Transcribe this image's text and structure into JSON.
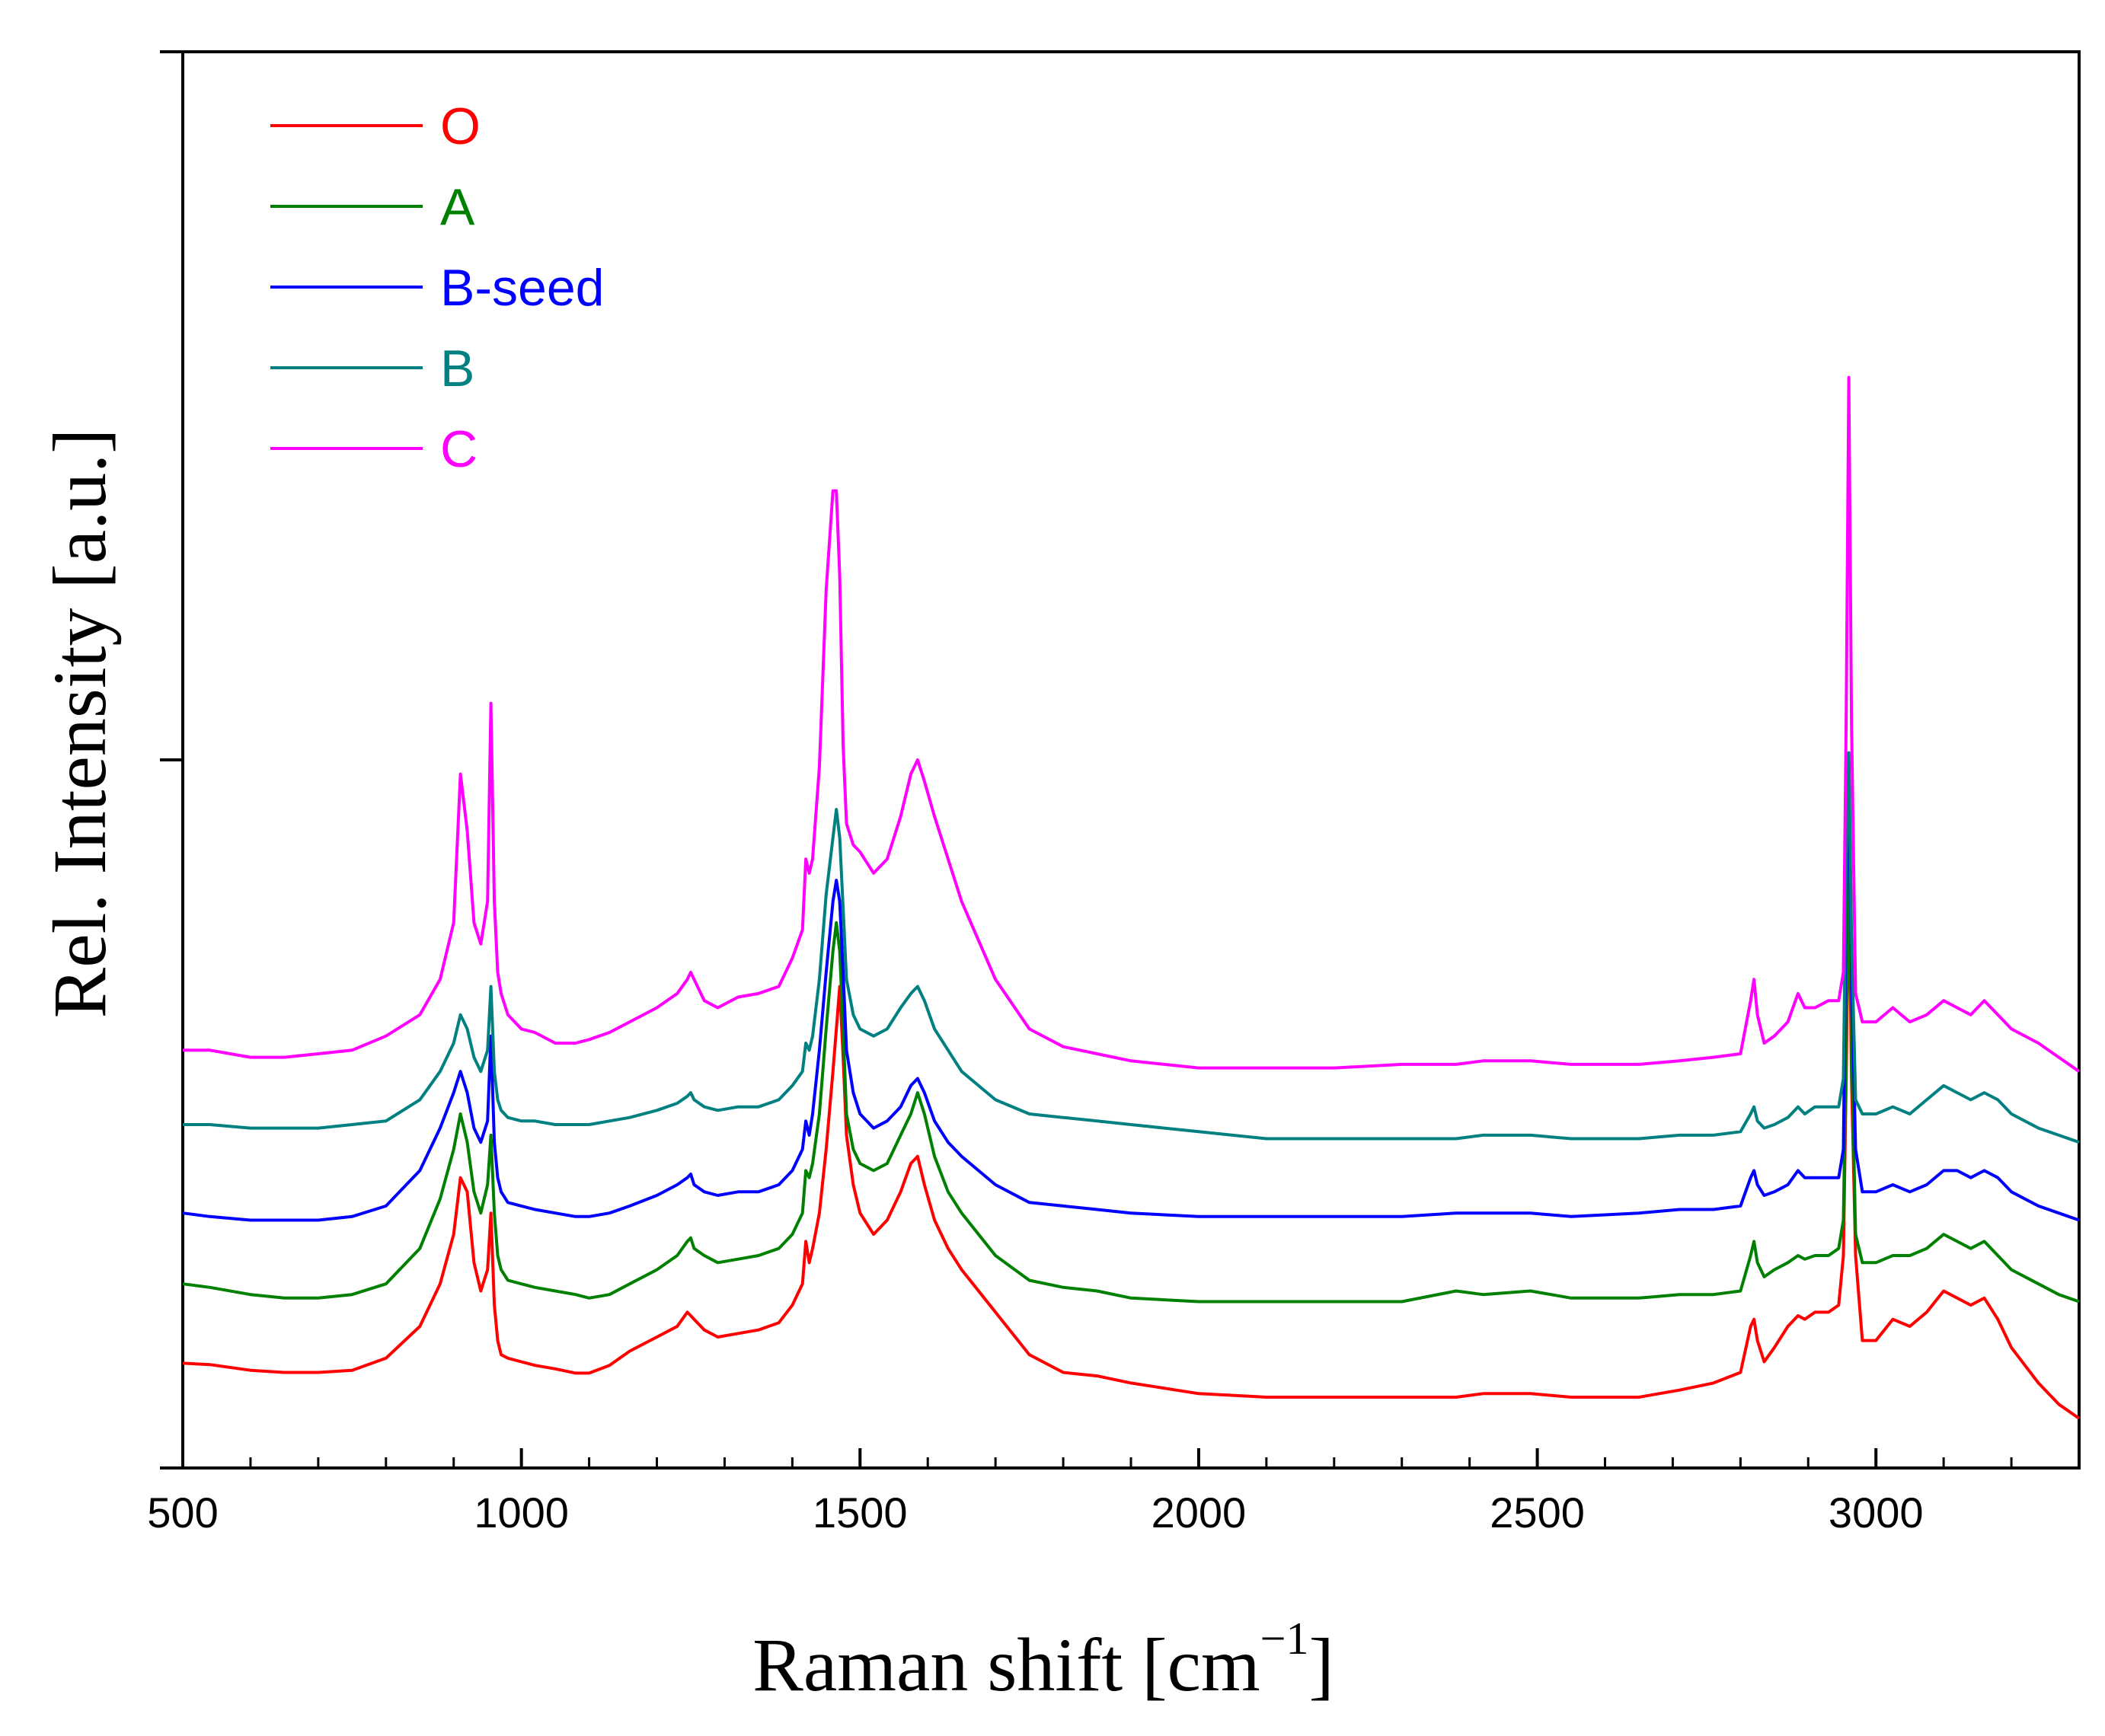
{
  "chart_data": {
    "type": "line",
    "title": "",
    "xlabel": "Raman shift [cm",
    "xlabel_sup": "−1",
    "xlabel_close": "]",
    "ylabel": "Rel. Intensity [a.u.]",
    "xlim": [
      500,
      3300
    ],
    "ylim": [
      0,
      2
    ],
    "x_ticks": [
      500,
      1000,
      1500,
      2000,
      2500,
      3000
    ],
    "x_tick_labels": [
      "500",
      "1000",
      "1500",
      "2000",
      "2500",
      "3000"
    ],
    "x_minor_step": 100,
    "y_ticks": [
      0,
      1,
      2
    ],
    "y_tick_labels": [
      "",
      "",
      ""
    ],
    "grid": false,
    "legend_position": "top-left",
    "x": [
      500,
      540,
      600,
      650,
      700,
      750,
      800,
      850,
      880,
      900,
      910,
      920,
      930,
      940,
      950,
      955,
      960,
      965,
      970,
      980,
      1000,
      1020,
      1050,
      1080,
      1100,
      1130,
      1160,
      1200,
      1230,
      1245,
      1250,
      1255,
      1270,
      1290,
      1320,
      1350,
      1380,
      1400,
      1415,
      1420,
      1425,
      1430,
      1440,
      1450,
      1460,
      1465,
      1470,
      1475,
      1480,
      1490,
      1500,
      1520,
      1540,
      1560,
      1575,
      1585,
      1595,
      1610,
      1630,
      1650,
      1700,
      1750,
      1800,
      1850,
      1900,
      2000,
      2100,
      2200,
      2300,
      2380,
      2420,
      2490,
      2550,
      2650,
      2710,
      2760,
      2800,
      2815,
      2820,
      2825,
      2835,
      2850,
      2870,
      2885,
      2895,
      2910,
      2930,
      2945,
      2952,
      2956,
      2960,
      2964,
      2970,
      2980,
      3000,
      3025,
      3050,
      3075,
      3100,
      3120,
      3140,
      3160,
      3180,
      3200,
      3240,
      3270,
      3300
    ],
    "series": [
      {
        "name": "O",
        "color": "#ff0000",
        "values": [
          0.148,
          0.146,
          0.138,
          0.135,
          0.135,
          0.138,
          0.155,
          0.2,
          0.26,
          0.33,
          0.41,
          0.39,
          0.29,
          0.25,
          0.28,
          0.36,
          0.23,
          0.18,
          0.16,
          0.155,
          0.15,
          0.145,
          0.14,
          0.134,
          0.134,
          0.145,
          0.165,
          0.185,
          0.2,
          0.22,
          0.215,
          0.21,
          0.195,
          0.185,
          0.19,
          0.195,
          0.205,
          0.23,
          0.26,
          0.32,
          0.29,
          0.31,
          0.36,
          0.45,
          0.56,
          0.62,
          0.68,
          0.58,
          0.47,
          0.4,
          0.36,
          0.33,
          0.35,
          0.39,
          0.43,
          0.44,
          0.4,
          0.35,
          0.31,
          0.28,
          0.22,
          0.16,
          0.135,
          0.13,
          0.12,
          0.105,
          0.1,
          0.1,
          0.1,
          0.1,
          0.105,
          0.105,
          0.1,
          0.1,
          0.11,
          0.12,
          0.135,
          0.2,
          0.21,
          0.18,
          0.15,
          0.17,
          0.2,
          0.215,
          0.21,
          0.22,
          0.22,
          0.23,
          0.3,
          0.55,
          0.84,
          0.55,
          0.3,
          0.18,
          0.18,
          0.21,
          0.2,
          0.22,
          0.25,
          0.24,
          0.23,
          0.24,
          0.21,
          0.17,
          0.12,
          0.09,
          0.07
        ]
      },
      {
        "name": "A",
        "color": "#008000",
        "values": [
          0.26,
          0.255,
          0.245,
          0.24,
          0.24,
          0.245,
          0.26,
          0.31,
          0.38,
          0.45,
          0.5,
          0.46,
          0.39,
          0.36,
          0.4,
          0.47,
          0.36,
          0.3,
          0.28,
          0.265,
          0.26,
          0.255,
          0.25,
          0.245,
          0.24,
          0.245,
          0.26,
          0.28,
          0.3,
          0.32,
          0.325,
          0.31,
          0.3,
          0.29,
          0.295,
          0.3,
          0.31,
          0.33,
          0.36,
          0.42,
          0.41,
          0.43,
          0.5,
          0.62,
          0.73,
          0.77,
          0.73,
          0.62,
          0.5,
          0.45,
          0.43,
          0.42,
          0.43,
          0.47,
          0.5,
          0.53,
          0.5,
          0.44,
          0.39,
          0.36,
          0.3,
          0.265,
          0.255,
          0.25,
          0.24,
          0.235,
          0.235,
          0.235,
          0.235,
          0.25,
          0.245,
          0.25,
          0.24,
          0.24,
          0.245,
          0.245,
          0.25,
          0.3,
          0.32,
          0.29,
          0.27,
          0.28,
          0.29,
          0.3,
          0.295,
          0.3,
          0.3,
          0.31,
          0.35,
          0.6,
          0.95,
          0.6,
          0.33,
          0.29,
          0.29,
          0.3,
          0.3,
          0.31,
          0.33,
          0.32,
          0.31,
          0.32,
          0.3,
          0.28,
          0.26,
          0.245,
          0.235
        ]
      },
      {
        "name": "B-seed",
        "color": "#0000ff",
        "values": [
          0.36,
          0.355,
          0.35,
          0.35,
          0.35,
          0.355,
          0.37,
          0.42,
          0.48,
          0.53,
          0.56,
          0.53,
          0.48,
          0.46,
          0.49,
          0.61,
          0.46,
          0.41,
          0.39,
          0.375,
          0.37,
          0.365,
          0.36,
          0.355,
          0.355,
          0.36,
          0.37,
          0.385,
          0.4,
          0.41,
          0.415,
          0.4,
          0.39,
          0.385,
          0.39,
          0.39,
          0.4,
          0.42,
          0.45,
          0.49,
          0.47,
          0.5,
          0.59,
          0.7,
          0.8,
          0.83,
          0.8,
          0.7,
          0.59,
          0.53,
          0.5,
          0.48,
          0.49,
          0.51,
          0.54,
          0.55,
          0.53,
          0.49,
          0.46,
          0.44,
          0.4,
          0.375,
          0.37,
          0.365,
          0.36,
          0.355,
          0.355,
          0.355,
          0.355,
          0.36,
          0.36,
          0.36,
          0.355,
          0.36,
          0.365,
          0.365,
          0.37,
          0.41,
          0.42,
          0.4,
          0.385,
          0.39,
          0.4,
          0.42,
          0.41,
          0.41,
          0.41,
          0.41,
          0.45,
          0.8,
          1.01,
          0.7,
          0.45,
          0.39,
          0.39,
          0.4,
          0.39,
          0.4,
          0.42,
          0.42,
          0.41,
          0.42,
          0.41,
          0.39,
          0.37,
          0.36,
          0.35
        ]
      },
      {
        "name": "B",
        "color": "#008080",
        "values": [
          0.485,
          0.485,
          0.48,
          0.48,
          0.48,
          0.485,
          0.49,
          0.52,
          0.56,
          0.6,
          0.64,
          0.62,
          0.58,
          0.56,
          0.59,
          0.68,
          0.56,
          0.52,
          0.505,
          0.495,
          0.49,
          0.49,
          0.485,
          0.485,
          0.485,
          0.49,
          0.495,
          0.505,
          0.515,
          0.525,
          0.53,
          0.52,
          0.51,
          0.505,
          0.51,
          0.51,
          0.52,
          0.54,
          0.56,
          0.6,
          0.59,
          0.61,
          0.69,
          0.81,
          0.89,
          0.93,
          0.89,
          0.79,
          0.69,
          0.64,
          0.62,
          0.61,
          0.62,
          0.65,
          0.67,
          0.68,
          0.66,
          0.62,
          0.59,
          0.56,
          0.52,
          0.5,
          0.495,
          0.49,
          0.485,
          0.475,
          0.465,
          0.465,
          0.465,
          0.465,
          0.47,
          0.47,
          0.465,
          0.465,
          0.47,
          0.47,
          0.475,
          0.5,
          0.51,
          0.49,
          0.48,
          0.485,
          0.495,
          0.51,
          0.5,
          0.51,
          0.51,
          0.51,
          0.55,
          0.85,
          1.01,
          0.75,
          0.52,
          0.5,
          0.5,
          0.51,
          0.5,
          0.52,
          0.54,
          0.53,
          0.52,
          0.53,
          0.52,
          0.5,
          0.48,
          0.47,
          0.46
        ]
      },
      {
        "name": "C",
        "color": "#ff00ff",
        "values": [
          0.59,
          0.59,
          0.58,
          0.58,
          0.585,
          0.59,
          0.61,
          0.64,
          0.69,
          0.77,
          0.98,
          0.9,
          0.77,
          0.74,
          0.8,
          1.08,
          0.8,
          0.7,
          0.67,
          0.64,
          0.62,
          0.615,
          0.6,
          0.6,
          0.605,
          0.615,
          0.63,
          0.65,
          0.67,
          0.69,
          0.7,
          0.69,
          0.66,
          0.65,
          0.665,
          0.67,
          0.68,
          0.72,
          0.76,
          0.86,
          0.84,
          0.86,
          0.99,
          1.24,
          1.38,
          1.38,
          1.26,
          1.02,
          0.91,
          0.88,
          0.87,
          0.84,
          0.86,
          0.92,
          0.98,
          1.0,
          0.97,
          0.92,
          0.86,
          0.8,
          0.69,
          0.62,
          0.595,
          0.585,
          0.575,
          0.565,
          0.565,
          0.565,
          0.57,
          0.57,
          0.575,
          0.575,
          0.57,
          0.57,
          0.575,
          0.58,
          0.585,
          0.66,
          0.69,
          0.64,
          0.6,
          0.61,
          0.63,
          0.67,
          0.65,
          0.65,
          0.66,
          0.66,
          0.7,
          1.05,
          1.54,
          1.05,
          0.67,
          0.63,
          0.63,
          0.65,
          0.63,
          0.64,
          0.66,
          0.65,
          0.64,
          0.66,
          0.64,
          0.62,
          0.6,
          0.58,
          0.56
        ]
      }
    ]
  }
}
